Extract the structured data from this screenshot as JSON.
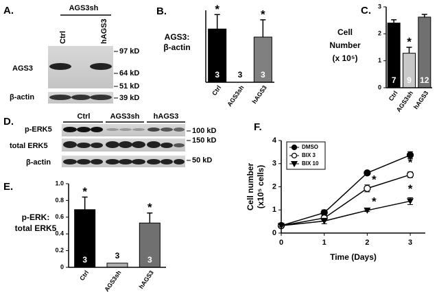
{
  "blot_a": {
    "panel_label": "A.",
    "group": "AGS3sh",
    "lanes": [
      "Ctrl",
      "hAGS3"
    ],
    "rows": [
      "AGS3",
      "β-actin"
    ],
    "markers": [
      "97 kD",
      "64 kD",
      "51 kD",
      "39 kD"
    ]
  },
  "blot_d": {
    "panel_label": "D.",
    "groups": [
      "Ctrl",
      "AGS3sh",
      "hAGS3"
    ],
    "rows": [
      "p-ERK5",
      "total ERK5",
      "β-actin"
    ],
    "markers": [
      "100 kD",
      "150 kD",
      "50 kD"
    ]
  },
  "chart_data": [
    {
      "type": "bar",
      "panel_label": "B.",
      "ylabel": [
        "AGS3:",
        "β-actin"
      ],
      "categories": [
        "Ctrl",
        "AGS3sh",
        "hAGS3"
      ],
      "values": [
        1.85,
        0,
        1.57
      ],
      "errors": [
        0.5,
        null,
        0.6
      ],
      "colors": [
        "#000000",
        "#ffffff",
        "#808080"
      ],
      "n_labels": [
        3,
        3,
        3
      ],
      "annotations": [
        "*",
        null,
        "*"
      ],
      "ylim": [
        0,
        2.5
      ]
    },
    {
      "type": "bar",
      "panel_label": "C.",
      "ylabel": [
        "Cell",
        "Number",
        "(x 10⁵)"
      ],
      "categories": [
        "Ctrl",
        "AGS3sh",
        "hAGS3"
      ],
      "values": [
        2.4,
        1.28,
        2.62
      ],
      "errors": [
        0.12,
        0.22,
        0.1
      ],
      "colors": [
        "#000000",
        "#c8c8c8",
        "#707070"
      ],
      "n_labels": [
        7,
        9,
        12
      ],
      "annotations": [
        null,
        "*",
        null
      ],
      "ylim": [
        0,
        3
      ],
      "yticks": [
        0,
        1,
        2,
        3
      ]
    },
    {
      "type": "bar",
      "panel_label": "E.",
      "ylabel": [
        "p-ERK:",
        "total ERK5"
      ],
      "categories": [
        "Ctrl",
        "AGS3sh",
        "hAGS3"
      ],
      "values": [
        0.69,
        0.05,
        0.53
      ],
      "errors": [
        0.15,
        null,
        0.12
      ],
      "colors": [
        "#000000",
        "#b0b0b0",
        "#707070"
      ],
      "n_labels": [
        3,
        3,
        3
      ],
      "annotations": [
        "*",
        null,
        "*"
      ],
      "ylim": [
        0,
        1
      ],
      "yticks": [
        0,
        0.2,
        0.4,
        0.6,
        0.8,
        {
          "value": 1,
          "label": "1.0"
        }
      ]
    },
    {
      "type": "line",
      "panel_label": "F.",
      "xlabel": "Time (Days)",
      "ylabel": [
        "Cell number",
        "(x10⁵ cells)"
      ],
      "x": [
        0,
        1,
        2,
        3
      ],
      "xlim": [
        0,
        3.35
      ],
      "xticks": [
        0,
        1,
        2,
        3
      ],
      "ylim": [
        0,
        4
      ],
      "yticks": [
        0,
        1,
        2,
        3,
        4
      ],
      "series": [
        {
          "name": "DMSO",
          "color": "#000000",
          "marker": "circle",
          "values": [
            0.32,
            0.88,
            2.6,
            3.37
          ],
          "errors": [
            0.05,
            0.12,
            0.07,
            0.15
          ],
          "annotations": [
            null,
            null,
            null,
            null
          ]
        },
        {
          "name": "BIX 3",
          "color": "#000000",
          "marker": "open-circle",
          "values": [
            0.32,
            0.65,
            1.93,
            2.52
          ],
          "errors": [
            0.05,
            0.08,
            0.15,
            0.12
          ],
          "annotations": [
            null,
            null,
            "*",
            "*"
          ]
        },
        {
          "name": "BIX 10",
          "color": "#000000",
          "marker": "triangle-down",
          "values": [
            0.32,
            0.52,
            0.98,
            1.38
          ],
          "errors": [
            0.05,
            0.12,
            0.05,
            0.15
          ],
          "annotations": [
            null,
            null,
            "*",
            "*"
          ]
        }
      ]
    }
  ]
}
